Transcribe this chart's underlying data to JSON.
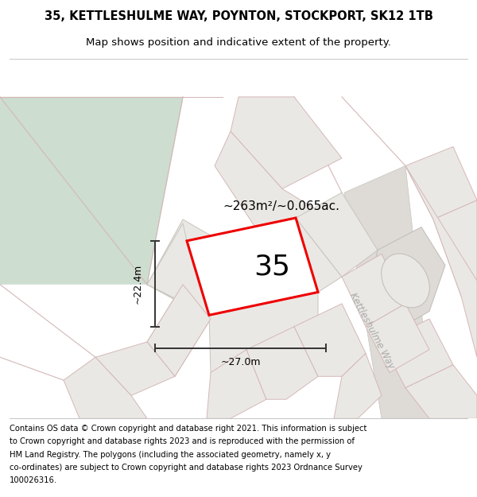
{
  "title_line1": "35, KETTLESHULME WAY, POYNTON, STOCKPORT, SK12 1TB",
  "title_line2": "Map shows position and indicative extent of the property.",
  "footer_lines": [
    "Contains OS data © Crown copyright and database right 2021. This information is subject",
    "to Crown copyright and database rights 2023 and is reproduced with the permission of",
    "HM Land Registry. The polygons (including the associated geometry, namely x, y",
    "co-ordinates) are subject to Crown copyright and database rights 2023 Ordnance Survey",
    "100026316."
  ],
  "area_label": "~263m²/~0.065ac.",
  "width_label": "~27.0m",
  "height_label": "~22.4m",
  "property_number": "35",
  "road_label": "Kettleshulme Way",
  "map_bg": "#f7f5f2",
  "green_color": "#cdddd0",
  "parcel_fill": "#eae8e4",
  "parcel_edge": "#d4b8b8",
  "road_fill": "#dedad5",
  "red_outline": "#ee0000",
  "prop_fill": "#f2f0ec",
  "dim_color": "#333333",
  "road_label_color": "#aaaaaa",
  "title_fontsize": 10.5,
  "subtitle_fontsize": 9.5,
  "footer_fontsize": 7.2,
  "number_fontsize": 26
}
